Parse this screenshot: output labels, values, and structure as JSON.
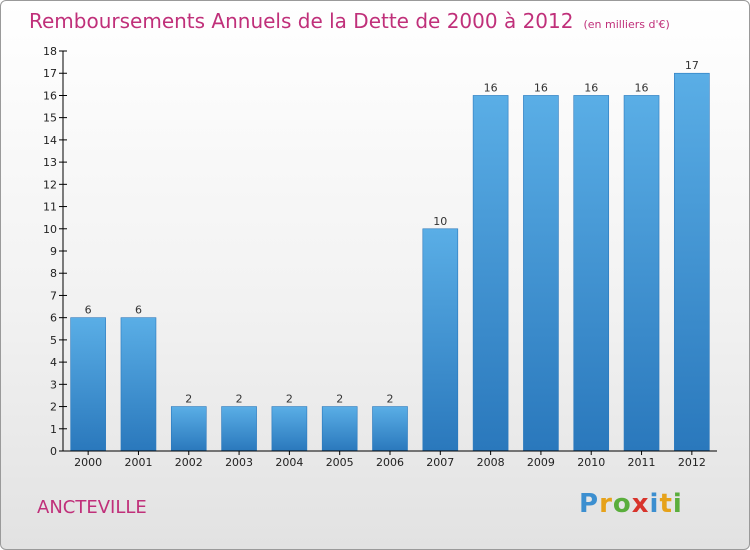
{
  "title": "Remboursements Annuels de la Dette de 2000 à 2012",
  "unit": "(en milliers d'€)",
  "commune": "ANCTEVILLE",
  "logo": {
    "text": "Proxiti",
    "letters": [
      {
        "ch": "P",
        "color": "#3c8fd0"
      },
      {
        "ch": "r",
        "color": "#e6a21a"
      },
      {
        "ch": "o",
        "color": "#5aae3c"
      },
      {
        "ch": "x",
        "color": "#d8342c"
      },
      {
        "ch": "i",
        "color": "#3c8fd0"
      },
      {
        "ch": "t",
        "color": "#e6a21a"
      },
      {
        "ch": "i",
        "color": "#5aae3c"
      }
    ]
  },
  "colors": {
    "title": "#c0307a",
    "bar_light": "#5aaee6",
    "bar_dark": "#2a78bc",
    "axis": "#000000"
  },
  "chart_data": {
    "type": "bar",
    "categories": [
      "2000",
      "2001",
      "2002",
      "2003",
      "2004",
      "2005",
      "2006",
      "2007",
      "2008",
      "2009",
      "2010",
      "2011",
      "2012"
    ],
    "values": [
      6,
      6,
      2,
      2,
      2,
      2,
      2,
      10,
      16,
      16,
      16,
      16,
      17
    ],
    "data_labels": [
      "6",
      "6",
      "2",
      "2",
      "2",
      "2",
      "2",
      "10",
      "16",
      "16",
      "16",
      "16",
      "17"
    ],
    "ylim": [
      0,
      18
    ],
    "yticks": [
      "0",
      "1",
      "2",
      "3",
      "4",
      "5",
      "6",
      "7",
      "8",
      "9",
      "10",
      "11",
      "12",
      "13",
      "14",
      "15",
      "16",
      "17",
      "18"
    ],
    "grid": false,
    "legend": "none"
  }
}
